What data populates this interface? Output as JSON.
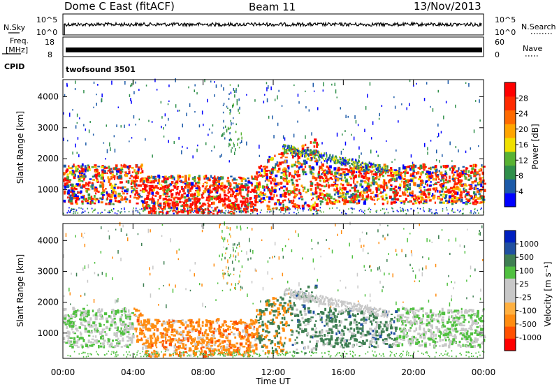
{
  "header": {
    "title": "Dome C East (fitACF)",
    "beam": "Beam 11",
    "date": "13/Nov/2013"
  },
  "strips": {
    "nsky": {
      "label": "N.Sky",
      "ytick_top": "10^5",
      "ytick_bottom": "10^0",
      "right_label": "N.Search",
      "rtick_top": "10^5",
      "rtick_bottom": "10^0"
    },
    "freq": {
      "label_line1": "Freq.",
      "label_line2": "[MHz]",
      "ytick_top": "18",
      "ytick_bottom": "8",
      "right_label": "Nave",
      "rtick_top": "60",
      "rtick_bottom": "0"
    },
    "cpid": {
      "label": "CPID",
      "value": "twofsound 3501"
    }
  },
  "colors": {
    "power": [
      "#0000ff",
      "#1c5aa8",
      "#2f8f4a",
      "#58b233",
      "#f0e000",
      "#ffa500",
      "#ff6a00",
      "#ff2a00",
      "#ff0000"
    ],
    "velocity": [
      "#ff0000",
      "#ff5000",
      "#ff8c10",
      "#ffb040",
      "#c8c8c8",
      "#c8c8c8",
      "#50c040",
      "#3e7f52",
      "#2050a0",
      "#0020c0"
    ]
  },
  "chart_data": [
    {
      "type": "heatmap",
      "panel": "power",
      "xlabel": "",
      "ylabel": "Slant Range [km]",
      "yticks": [
        "1000",
        "2000",
        "3000",
        "4000"
      ],
      "ylim": [
        180,
        4550
      ],
      "xlim": [
        0,
        24
      ],
      "colorbar": {
        "label": "Power [dB]",
        "ticks": [
          "4",
          "8",
          "12",
          "16",
          "20",
          "24",
          "28"
        ],
        "range": [
          0,
          32
        ]
      }
    },
    {
      "type": "heatmap",
      "panel": "velocity",
      "xlabel": "Time UT",
      "ylabel": "Slant Range [km]",
      "xticks": [
        "00:00",
        "04:00",
        "08:00",
        "12:00",
        "16:00",
        "20:00",
        "00:00"
      ],
      "yticks": [
        "1000",
        "2000",
        "3000",
        "4000"
      ],
      "ylim": [
        180,
        4550
      ],
      "xlim": [
        0,
        24
      ],
      "colorbar": {
        "label": "Velocity [m s⁻¹]",
        "ticks": [
          "1000",
          "500",
          "100",
          "25",
          "-25",
          "-100",
          "-500",
          "-1000"
        ]
      }
    }
  ]
}
